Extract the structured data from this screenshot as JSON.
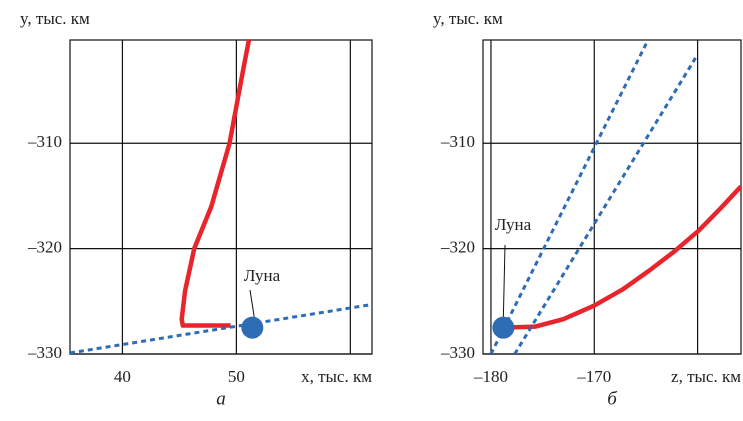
{
  "chart_data": [
    {
      "type": "line",
      "x_label": "x, тыс. км",
      "y_label": "y, тыс. км",
      "caption": "а",
      "xlim": [
        35.4,
        61.9
      ],
      "ylim": [
        -330,
        -300.2
      ],
      "xticks": [
        40,
        50
      ],
      "xgrid": [
        40,
        50,
        60
      ],
      "yticks": [
        {
          "value": -310,
          "label": "–310"
        },
        {
          "value": -320,
          "label": "–320"
        },
        {
          "value": -330,
          "label": "–330"
        }
      ],
      "series": [
        {
          "color": "#e8242c",
          "style": "solid",
          "x": [
            51.1,
            50.6,
            49.4,
            47.8,
            46.3,
            45.5,
            45.2,
            45.3,
            46.5,
            49.5
          ],
          "values": [
            -300.2,
            -303,
            -310,
            -316,
            -320,
            -324,
            -326.7,
            -327.3,
            -327.3,
            -327.3
          ]
        },
        {
          "color": "#2e6db4",
          "style": "dashed",
          "x": [
            35.4,
            61.9
          ],
          "values": [
            -329.9,
            -325.3
          ]
        }
      ],
      "marker": {
        "x": 51.4,
        "y": -327.5,
        "color": "#2e6db4"
      },
      "annotation": "Луна"
    },
    {
      "type": "line",
      "x_label": "z, тыс. км",
      "y_label": "y, тыс. км",
      "caption": "б",
      "xlim": [
        -180.77,
        -155.8
      ],
      "ylim": [
        -330,
        -300.2
      ],
      "xticks": [
        {
          "value": -180,
          "label": "–180"
        },
        {
          "value": -170,
          "label": "–170"
        }
      ],
      "xgrid": [
        -180,
        -170,
        -160
      ],
      "yticks": [
        {
          "value": -310,
          "label": "–310"
        },
        {
          "value": -320,
          "label": "–320"
        },
        {
          "value": -330,
          "label": "–330"
        }
      ],
      "series": [
        {
          "color": "#e8242c",
          "style": "solid",
          "x": [
            -178.8,
            -175.7,
            -173,
            -170,
            -167.3,
            -164.7,
            -162.3,
            -159.9,
            -157.8,
            -155.8
          ],
          "values": [
            -327.5,
            -327.4,
            -326.7,
            -325.4,
            -323.9,
            -322.1,
            -320.3,
            -318.3,
            -316.2,
            -314.1
          ]
        },
        {
          "color": "#2e6db4",
          "style": "dashed",
          "x": [
            -180,
            -164.9
          ],
          "values": [
            -330,
            -300.4
          ]
        },
        {
          "color": "#2e6db4",
          "style": "dashed",
          "x": [
            -177.7,
            -160.2
          ],
          "values": [
            -330,
            -301.9
          ]
        }
      ],
      "marker": {
        "x": -178.8,
        "y": -327.5,
        "color": "#2e6db4"
      },
      "annotation": "Луна"
    }
  ]
}
